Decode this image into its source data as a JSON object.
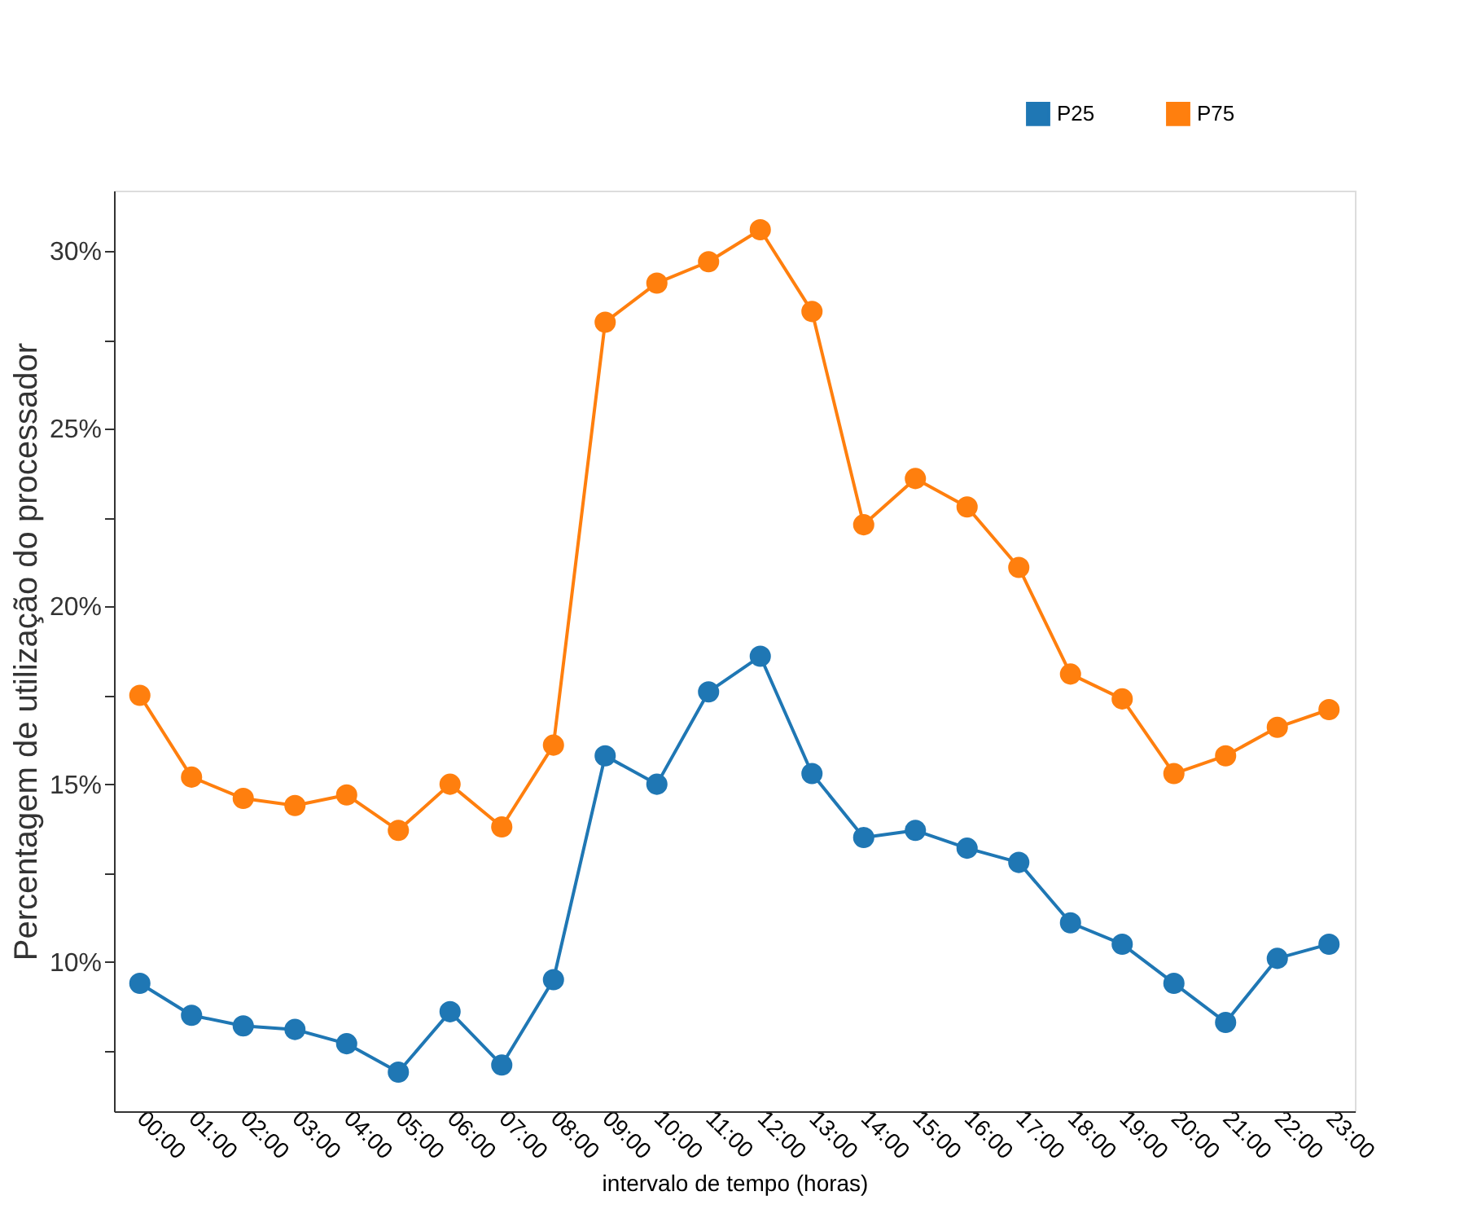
{
  "chart_data": {
    "type": "line",
    "xlabel": "intervalo de tempo (horas)",
    "ylabel": "Percentagem de utilização do processador",
    "categories": [
      "00:00",
      "01:00",
      "02:00",
      "03:00",
      "04:00",
      "05:00",
      "06:00",
      "07:00",
      "08:00",
      "09:00",
      "10:00",
      "11:00",
      "12:00",
      "13:00",
      "14:00",
      "15:00",
      "16:00",
      "17:00",
      "18:00",
      "19:00",
      "20:00",
      "21:00",
      "22:00",
      "23:00"
    ],
    "series": [
      {
        "name": "P25",
        "color": "#1f77b4",
        "values": [
          9.4,
          8.5,
          8.2,
          8.1,
          7.7,
          6.9,
          8.6,
          7.1,
          9.5,
          15.8,
          15.0,
          17.6,
          18.6,
          15.3,
          13.5,
          13.7,
          13.2,
          12.8,
          11.1,
          10.5,
          9.4,
          8.3,
          10.1,
          10.5
        ]
      },
      {
        "name": "P75",
        "color": "#ff7f0e",
        "values": [
          17.5,
          15.2,
          14.6,
          14.4,
          14.7,
          13.7,
          15.0,
          13.8,
          16.1,
          28.0,
          29.1,
          29.7,
          30.6,
          28.3,
          22.3,
          23.6,
          22.8,
          21.1,
          18.1,
          17.4,
          15.3,
          15.8,
          16.6,
          17.1
        ]
      }
    ],
    "ylim": [
      5.8,
      31.7
    ],
    "yticks": [
      {
        "value": 7.5,
        "label": null
      },
      {
        "value": 10,
        "label": "10%"
      },
      {
        "value": 12.5,
        "label": null
      },
      {
        "value": 15,
        "label": "15%"
      },
      {
        "value": 17.5,
        "label": null
      },
      {
        "value": 20,
        "label": "20%"
      },
      {
        "value": 22.5,
        "label": null
      },
      {
        "value": 25,
        "label": "25%"
      },
      {
        "value": 27.5,
        "label": null
      },
      {
        "value": 30,
        "label": "30%"
      }
    ],
    "marker": "circle",
    "line_style": "solid",
    "legend": "top right",
    "grid": false
  }
}
